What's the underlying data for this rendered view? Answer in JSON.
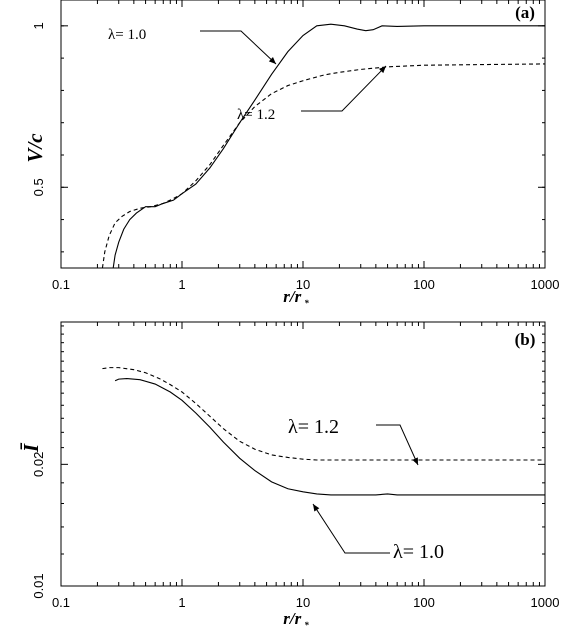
{
  "chart_data": [
    {
      "type": "line",
      "panel_label": "(a)",
      "xlabel": "r/r",
      "xlabel_sub": "*",
      "ylabel": "V/c",
      "xscale": "log",
      "xlim": [
        0.1,
        1000
      ],
      "ylim": [
        0.25,
        1.08
      ],
      "xticks": [
        "0.1",
        "1",
        "10",
        "100",
        "1000"
      ],
      "yticks": [
        "0.5",
        "1"
      ],
      "series": [
        {
          "name": "λ= 1.0",
          "style": "solid",
          "x": [
            0.27,
            0.28,
            0.3,
            0.33,
            0.37,
            0.42,
            0.5,
            0.6,
            0.7,
            0.85,
            1.0,
            1.3,
            1.7,
            2.2,
            3.0,
            4.0,
            5.5,
            7.5,
            10,
            13,
            17,
            22,
            28,
            33,
            38,
            45,
            60,
            100,
            300,
            1000
          ],
          "y": [
            0.25,
            0.29,
            0.33,
            0.37,
            0.4,
            0.42,
            0.44,
            0.44,
            0.45,
            0.46,
            0.48,
            0.51,
            0.56,
            0.62,
            0.7,
            0.77,
            0.85,
            0.92,
            0.97,
            1.0,
            1.005,
            1.0,
            0.99,
            0.985,
            0.988,
            1.0,
            0.998,
            1.0,
            1.0,
            1.0
          ]
        },
        {
          "name": "λ= 1.2",
          "style": "dashed",
          "x": [
            0.22,
            0.23,
            0.25,
            0.28,
            0.32,
            0.37,
            0.45,
            0.55,
            0.7,
            0.85,
            1.0,
            1.3,
            1.7,
            2.2,
            3.0,
            4.0,
            5.5,
            7.5,
            10,
            15,
            20,
            30,
            50,
            100,
            300,
            1000
          ],
          "y": [
            0.25,
            0.3,
            0.35,
            0.39,
            0.41,
            0.425,
            0.435,
            0.44,
            0.45,
            0.465,
            0.48,
            0.52,
            0.57,
            0.63,
            0.7,
            0.75,
            0.79,
            0.815,
            0.83,
            0.848,
            0.856,
            0.865,
            0.873,
            0.878,
            0.88,
            0.882
          ]
        }
      ],
      "annotations": [
        {
          "text": "λ= 1.0",
          "series": "λ= 1.0"
        },
        {
          "text": "λ= 1.2",
          "series": "λ= 1.2"
        }
      ],
      "grid": false
    },
    {
      "type": "line",
      "panel_label": "(b)",
      "xlabel": "r/r",
      "xlabel_sub": "*",
      "ylabel": "Ī",
      "xscale": "log",
      "yscale": "log",
      "xlim": [
        0.1,
        1000
      ],
      "ylim": [
        0.01,
        0.045
      ],
      "xticks": [
        "0.1",
        "1",
        "10",
        "100",
        "1000"
      ],
      "yticks": [
        "0.01",
        "0.02"
      ],
      "series": [
        {
          "name": "λ= 1.0",
          "style": "solid",
          "x": [
            0.28,
            0.3,
            0.35,
            0.45,
            0.6,
            0.8,
            1.0,
            1.3,
            1.7,
            2.2,
            3.0,
            4.0,
            5.5,
            7.5,
            10,
            13,
            17,
            22,
            30,
            40,
            50,
            60,
            80,
            100,
            200,
            500,
            1000
          ],
          "y": [
            0.0322,
            0.0325,
            0.0326,
            0.0324,
            0.0316,
            0.0302,
            0.0288,
            0.0268,
            0.0247,
            0.0227,
            0.0207,
            0.0193,
            0.0181,
            0.0174,
            0.0171,
            0.0169,
            0.0168,
            0.0168,
            0.0168,
            0.0168,
            0.0169,
            0.0168,
            0.0168,
            0.0168,
            0.0168,
            0.0168,
            0.0168
          ]
        },
        {
          "name": "λ= 1.2",
          "style": "dashed",
          "x": [
            0.22,
            0.25,
            0.3,
            0.4,
            0.5,
            0.65,
            0.8,
            1.0,
            1.3,
            1.7,
            2.2,
            3.0,
            4.0,
            5.5,
            7.5,
            10,
            13,
            17,
            25,
            40,
            60,
            100,
            200,
            500,
            1000
          ],
          "y": [
            0.0345,
            0.0347,
            0.0347,
            0.0343,
            0.0337,
            0.0326,
            0.0315,
            0.0302,
            0.0283,
            0.0263,
            0.0245,
            0.0228,
            0.0218,
            0.0211,
            0.0208,
            0.0206,
            0.0205,
            0.0205,
            0.0205,
            0.0205,
            0.0205,
            0.0205,
            0.0205,
            0.0205,
            0.0205
          ]
        }
      ],
      "annotations": [
        {
          "text": "λ= 1.2",
          "series": "λ= 1.2"
        },
        {
          "text": "λ= 1.0",
          "series": "λ= 1.0"
        }
      ],
      "grid": false
    }
  ]
}
